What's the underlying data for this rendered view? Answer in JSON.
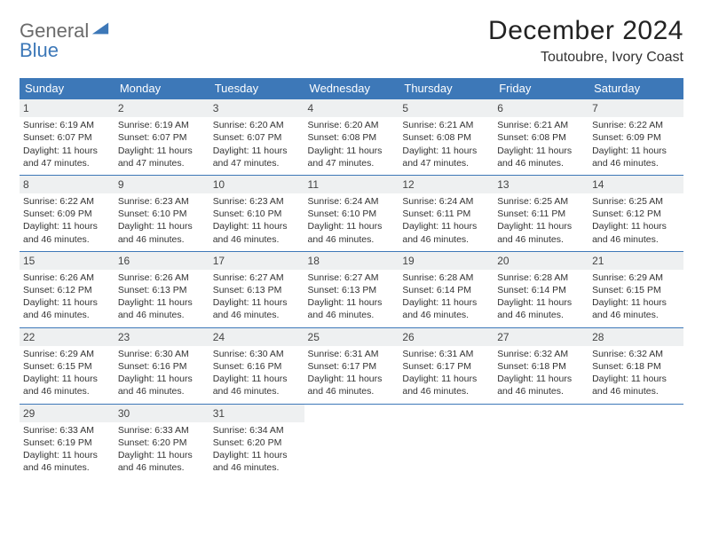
{
  "logo": {
    "text1": "General",
    "text2": "Blue"
  },
  "header": {
    "month_title": "December 2024",
    "location": "Toutoubre, Ivory Coast"
  },
  "colors": {
    "header_bg": "#3d78b8",
    "header_text": "#ffffff",
    "daynum_bg": "#eef0f1",
    "row_border": "#3d78b8",
    "logo_gray": "#6b6b6b",
    "logo_blue": "#3d78b8"
  },
  "weekdays": [
    "Sunday",
    "Monday",
    "Tuesday",
    "Wednesday",
    "Thursday",
    "Friday",
    "Saturday"
  ],
  "days": [
    {
      "n": "1",
      "sr": "6:19 AM",
      "ss": "6:07 PM",
      "dl": "11 hours and 47 minutes."
    },
    {
      "n": "2",
      "sr": "6:19 AM",
      "ss": "6:07 PM",
      "dl": "11 hours and 47 minutes."
    },
    {
      "n": "3",
      "sr": "6:20 AM",
      "ss": "6:07 PM",
      "dl": "11 hours and 47 minutes."
    },
    {
      "n": "4",
      "sr": "6:20 AM",
      "ss": "6:08 PM",
      "dl": "11 hours and 47 minutes."
    },
    {
      "n": "5",
      "sr": "6:21 AM",
      "ss": "6:08 PM",
      "dl": "11 hours and 47 minutes."
    },
    {
      "n": "6",
      "sr": "6:21 AM",
      "ss": "6:08 PM",
      "dl": "11 hours and 46 minutes."
    },
    {
      "n": "7",
      "sr": "6:22 AM",
      "ss": "6:09 PM",
      "dl": "11 hours and 46 minutes."
    },
    {
      "n": "8",
      "sr": "6:22 AM",
      "ss": "6:09 PM",
      "dl": "11 hours and 46 minutes."
    },
    {
      "n": "9",
      "sr": "6:23 AM",
      "ss": "6:10 PM",
      "dl": "11 hours and 46 minutes."
    },
    {
      "n": "10",
      "sr": "6:23 AM",
      "ss": "6:10 PM",
      "dl": "11 hours and 46 minutes."
    },
    {
      "n": "11",
      "sr": "6:24 AM",
      "ss": "6:10 PM",
      "dl": "11 hours and 46 minutes."
    },
    {
      "n": "12",
      "sr": "6:24 AM",
      "ss": "6:11 PM",
      "dl": "11 hours and 46 minutes."
    },
    {
      "n": "13",
      "sr": "6:25 AM",
      "ss": "6:11 PM",
      "dl": "11 hours and 46 minutes."
    },
    {
      "n": "14",
      "sr": "6:25 AM",
      "ss": "6:12 PM",
      "dl": "11 hours and 46 minutes."
    },
    {
      "n": "15",
      "sr": "6:26 AM",
      "ss": "6:12 PM",
      "dl": "11 hours and 46 minutes."
    },
    {
      "n": "16",
      "sr": "6:26 AM",
      "ss": "6:13 PM",
      "dl": "11 hours and 46 minutes."
    },
    {
      "n": "17",
      "sr": "6:27 AM",
      "ss": "6:13 PM",
      "dl": "11 hours and 46 minutes."
    },
    {
      "n": "18",
      "sr": "6:27 AM",
      "ss": "6:13 PM",
      "dl": "11 hours and 46 minutes."
    },
    {
      "n": "19",
      "sr": "6:28 AM",
      "ss": "6:14 PM",
      "dl": "11 hours and 46 minutes."
    },
    {
      "n": "20",
      "sr": "6:28 AM",
      "ss": "6:14 PM",
      "dl": "11 hours and 46 minutes."
    },
    {
      "n": "21",
      "sr": "6:29 AM",
      "ss": "6:15 PM",
      "dl": "11 hours and 46 minutes."
    },
    {
      "n": "22",
      "sr": "6:29 AM",
      "ss": "6:15 PM",
      "dl": "11 hours and 46 minutes."
    },
    {
      "n": "23",
      "sr": "6:30 AM",
      "ss": "6:16 PM",
      "dl": "11 hours and 46 minutes."
    },
    {
      "n": "24",
      "sr": "6:30 AM",
      "ss": "6:16 PM",
      "dl": "11 hours and 46 minutes."
    },
    {
      "n": "25",
      "sr": "6:31 AM",
      "ss": "6:17 PM",
      "dl": "11 hours and 46 minutes."
    },
    {
      "n": "26",
      "sr": "6:31 AM",
      "ss": "6:17 PM",
      "dl": "11 hours and 46 minutes."
    },
    {
      "n": "27",
      "sr": "6:32 AM",
      "ss": "6:18 PM",
      "dl": "11 hours and 46 minutes."
    },
    {
      "n": "28",
      "sr": "6:32 AM",
      "ss": "6:18 PM",
      "dl": "11 hours and 46 minutes."
    },
    {
      "n": "29",
      "sr": "6:33 AM",
      "ss": "6:19 PM",
      "dl": "11 hours and 46 minutes."
    },
    {
      "n": "30",
      "sr": "6:33 AM",
      "ss": "6:20 PM",
      "dl": "11 hours and 46 minutes."
    },
    {
      "n": "31",
      "sr": "6:34 AM",
      "ss": "6:20 PM",
      "dl": "11 hours and 46 minutes."
    }
  ],
  "labels": {
    "sunrise": "Sunrise:",
    "sunset": "Sunset:",
    "daylight": "Daylight:"
  },
  "layout": {
    "start_weekday": 0,
    "total_cells": 35
  }
}
